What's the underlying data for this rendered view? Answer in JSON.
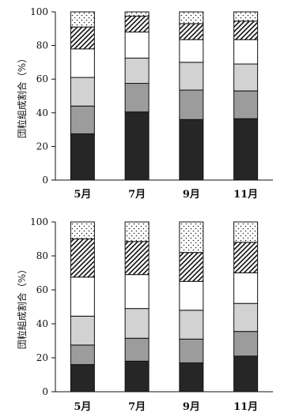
{
  "colors": {
    "seg1": "#262626",
    "seg2": "#9c9c9c",
    "seg3": "#d2d2d2",
    "seg4": "#ffffff",
    "seg5_pattern": "diagonal-hatch",
    "seg6_pattern": "dots",
    "stroke": "#111111"
  },
  "chart_data": [
    {
      "type": "bar",
      "stacked": true,
      "categories": [
        "5月",
        "7月",
        "9月",
        "11月"
      ],
      "ylabel": "団粒組成割合（%）",
      "ylim": [
        0,
        100
      ],
      "yticks": [
        "0",
        "20",
        "40",
        "60",
        "80",
        "100"
      ],
      "series": [
        {
          "fill": "seg1",
          "values": [
            27.5,
            40.5,
            36,
            36.5
          ]
        },
        {
          "fill": "seg2",
          "values": [
            16.5,
            17,
            17.5,
            16.5
          ]
        },
        {
          "fill": "seg3",
          "values": [
            17,
            15,
            16.5,
            16
          ]
        },
        {
          "fill": "seg4",
          "values": [
            17,
            15.5,
            13.5,
            14.5
          ]
        },
        {
          "fill": "seg5_pattern",
          "values": [
            13,
            9.5,
            9.5,
            11
          ]
        },
        {
          "fill": "seg6_pattern",
          "values": [
            9,
            2.5,
            7,
            5.5
          ]
        }
      ]
    },
    {
      "type": "bar",
      "stacked": true,
      "categories": [
        "5月",
        "7月",
        "9月",
        "11月"
      ],
      "ylabel": "団粒組成割合（%）",
      "ylim": [
        0,
        100
      ],
      "yticks": [
        "0",
        "20",
        "40",
        "60",
        "80",
        "100"
      ],
      "series": [
        {
          "fill": "seg1",
          "values": [
            16,
            18,
            17,
            21
          ]
        },
        {
          "fill": "seg2",
          "values": [
            11.5,
            13.5,
            14,
            14.5
          ]
        },
        {
          "fill": "seg3",
          "values": [
            17,
            17.5,
            17,
            16.5
          ]
        },
        {
          "fill": "seg4",
          "values": [
            23,
            20,
            17,
            18
          ]
        },
        {
          "fill": "seg5_pattern",
          "values": [
            22.5,
            19.5,
            17,
            18
          ]
        },
        {
          "fill": "seg6_pattern",
          "values": [
            10,
            11.5,
            18,
            12
          ]
        }
      ]
    }
  ]
}
